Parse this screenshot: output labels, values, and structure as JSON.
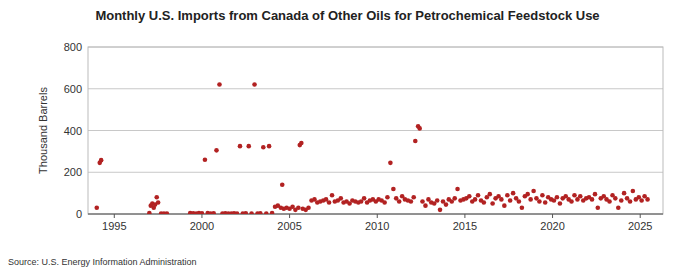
{
  "chart_data": {
    "type": "scatter",
    "title": "Monthly U.S. Imports from Canada of Other Oils for Petrochemical Feedstock Use",
    "y_label": "Thousand Barrels",
    "source": "Source: U.S. Energy Information Administration",
    "x": [
      1994.0,
      1994.17,
      1994.25,
      1997.0,
      1997.08,
      1997.17,
      1997.25,
      1997.33,
      1997.42,
      1997.5,
      1997.67,
      1997.83,
      1998.0,
      1999.33,
      1999.5,
      1999.67,
      1999.83,
      2000.0,
      2000.17,
      2000.33,
      2000.5,
      2000.67,
      2000.83,
      2001.0,
      2001.17,
      2001.33,
      2001.5,
      2001.67,
      2001.83,
      2002.0,
      2002.17,
      2002.33,
      2002.5,
      2002.67,
      2002.83,
      2003.0,
      2003.17,
      2003.33,
      2003.5,
      2003.67,
      2003.83,
      2004.0,
      2004.17,
      2004.33,
      2004.5,
      2004.58,
      2004.67,
      2004.83,
      2005.0,
      2005.17,
      2005.33,
      2005.5,
      2005.58,
      2005.67,
      2005.75,
      2005.92,
      2006.08,
      2006.25,
      2006.42,
      2006.58,
      2006.75,
      2006.92,
      2007.08,
      2007.25,
      2007.42,
      2007.58,
      2007.75,
      2007.92,
      2008.08,
      2008.25,
      2008.42,
      2008.58,
      2008.75,
      2008.92,
      2009.08,
      2009.25,
      2009.42,
      2009.58,
      2009.75,
      2009.92,
      2010.08,
      2010.25,
      2010.42,
      2010.58,
      2010.75,
      2010.92,
      2011.08,
      2011.25,
      2011.42,
      2011.58,
      2011.75,
      2011.92,
      2012.08,
      2012.17,
      2012.33,
      2012.42,
      2012.58,
      2012.75,
      2012.92,
      2013.08,
      2013.25,
      2013.42,
      2013.58,
      2013.75,
      2013.92,
      2014.08,
      2014.25,
      2014.42,
      2014.58,
      2014.75,
      2014.92,
      2015.08,
      2015.25,
      2015.42,
      2015.58,
      2015.75,
      2015.92,
      2016.08,
      2016.25,
      2016.42,
      2016.58,
      2016.75,
      2016.92,
      2017.08,
      2017.25,
      2017.42,
      2017.58,
      2017.75,
      2017.92,
      2018.08,
      2018.25,
      2018.42,
      2018.58,
      2018.75,
      2018.92,
      2019.08,
      2019.25,
      2019.42,
      2019.58,
      2019.75,
      2019.92,
      2020.08,
      2020.25,
      2020.42,
      2020.58,
      2020.75,
      2020.92,
      2021.08,
      2021.25,
      2021.42,
      2021.58,
      2021.75,
      2021.92,
      2022.08,
      2022.25,
      2022.42,
      2022.58,
      2022.75,
      2022.92,
      2023.08,
      2023.25,
      2023.42,
      2023.58,
      2023.75,
      2023.92,
      2024.08,
      2024.25,
      2024.42,
      2024.58,
      2024.75,
      2024.92,
      2025.08,
      2025.25,
      2025.42
    ],
    "values": [
      30,
      245,
      258,
      5,
      40,
      50,
      30,
      45,
      80,
      55,
      2,
      2,
      2,
      5,
      3,
      2,
      4,
      3,
      260,
      5,
      2,
      3,
      305,
      620,
      2,
      3,
      2,
      2,
      3,
      2,
      325,
      2,
      3,
      325,
      2,
      620,
      2,
      3,
      320,
      2,
      325,
      5,
      35,
      40,
      30,
      140,
      25,
      30,
      25,
      35,
      20,
      30,
      330,
      340,
      25,
      20,
      30,
      65,
      70,
      55,
      60,
      65,
      70,
      55,
      90,
      60,
      65,
      75,
      55,
      60,
      50,
      65,
      60,
      55,
      60,
      75,
      55,
      65,
      70,
      60,
      70,
      65,
      55,
      80,
      245,
      120,
      75,
      60,
      85,
      70,
      65,
      60,
      80,
      350,
      420,
      410,
      60,
      40,
      70,
      55,
      50,
      65,
      20,
      60,
      45,
      70,
      60,
      75,
      120,
      65,
      70,
      75,
      85,
      60,
      70,
      90,
      65,
      55,
      80,
      95,
      50,
      75,
      85,
      70,
      40,
      90,
      65,
      100,
      75,
      60,
      30,
      85,
      95,
      70,
      110,
      75,
      60,
      90,
      55,
      80,
      70,
      65,
      80,
      50,
      75,
      85,
      70,
      60,
      90,
      70,
      85,
      65,
      75,
      80,
      70,
      95,
      30,
      75,
      85,
      70,
      60,
      90,
      75,
      30,
      65,
      100,
      75,
      60,
      110,
      70,
      80,
      65,
      85,
      70
    ],
    "color": "#b22222",
    "marker": "circle",
    "xlim": [
      1993.5,
      2026.3
    ],
    "xticks": [
      1995,
      2000,
      2005,
      2010,
      2015,
      2020,
      2025
    ],
    "ylim": [
      0,
      800
    ],
    "yticks": [
      0,
      200,
      400,
      600,
      800
    ],
    "grid": true
  }
}
